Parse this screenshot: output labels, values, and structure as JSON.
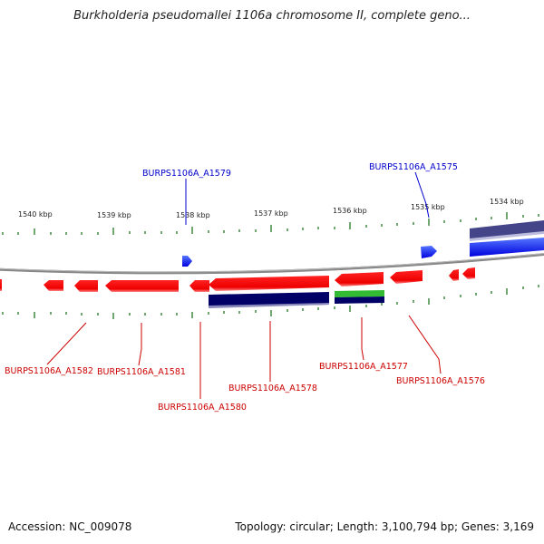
{
  "header": {
    "title": "Burkholderia pseudomallei 1106a chromosome II, complete geno..."
  },
  "footer": {
    "accession": "Accession: NC_009078",
    "topology": "Topology: circular; Length: 3,100,794 bp; Genes: 3,169"
  },
  "scale": {
    "ticks": [
      "1540 kbp",
      "1539 kbp",
      "1538 kbp",
      "1537 kbp",
      "1536 kbp",
      "1535 kbp",
      "1534 kbp"
    ]
  },
  "genes": {
    "A1575": "BURPS1106A_A1575",
    "A1576": "BURPS1106A_A1576",
    "A1577": "BURPS1106A_A1577",
    "A1578": "BURPS1106A_A1578",
    "A1579": "BURPS1106A_A1579",
    "A1580": "BURPS1106A_A1580",
    "A1581": "BURPS1106A_A1581",
    "A1582": "BURPS1106A_A1582"
  },
  "colors": {
    "forward_gene": "#0000ff",
    "reverse_gene": "#ff0000",
    "cds_dark": "#000066",
    "feature_green": "#33bb33",
    "feature_purple": "#444488",
    "backbone": "#888888",
    "tick": "#227722"
  }
}
